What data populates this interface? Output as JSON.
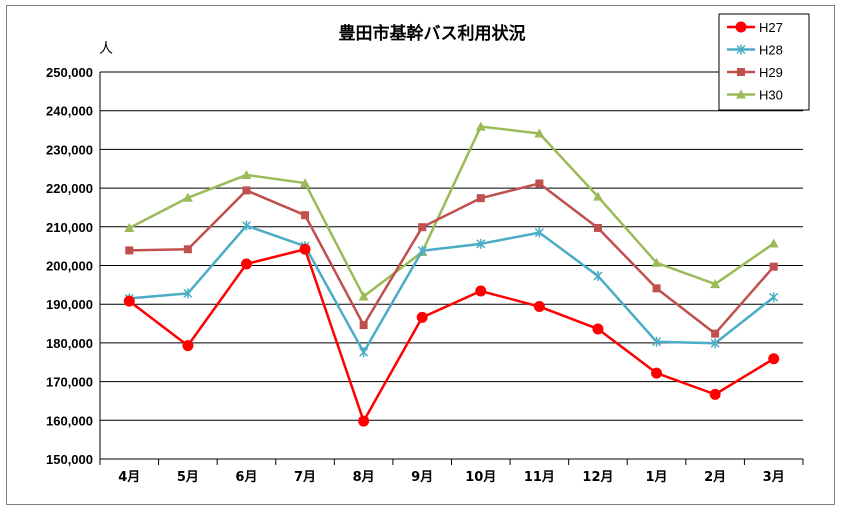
{
  "chart_data": {
    "type": "line",
    "title": "豊田市基幹バス利用状況",
    "ylabel": "人",
    "xlabel": "",
    "categories": [
      "4月",
      "5月",
      "6月",
      "7月",
      "8月",
      "9月",
      "10月",
      "11月",
      "12月",
      "1月",
      "2月",
      "3月"
    ],
    "ylim": [
      150000,
      250000
    ],
    "ytick_step": 10000,
    "yticks": [
      "150,000",
      "160,000",
      "170,000",
      "180,000",
      "190,000",
      "200,000",
      "210,000",
      "220,000",
      "230,000",
      "240,000",
      "250,000"
    ],
    "grid": true,
    "legend_position": "top-right",
    "series": [
      {
        "name": "H27",
        "color": "#ff0000",
        "marker": "circle",
        "values": [
          190800,
          179300,
          200400,
          204200,
          159800,
          186600,
          193400,
          189400,
          183600,
          172200,
          166700,
          175900
        ]
      },
      {
        "name": "H28",
        "color": "#4bacc6",
        "marker": "star",
        "values": [
          191500,
          192800,
          210300,
          205000,
          177600,
          203800,
          205600,
          208500,
          197300,
          180300,
          179900,
          191800
        ]
      },
      {
        "name": "H29",
        "color": "#c0504d",
        "marker": "square",
        "values": [
          203900,
          204200,
          219400,
          213000,
          184600,
          209900,
          217400,
          221200,
          209700,
          194100,
          182400,
          199700
        ]
      },
      {
        "name": "H30",
        "color": "#9bbb59",
        "marker": "triangle",
        "values": [
          209700,
          217500,
          223400,
          221300,
          192000,
          203500,
          235900,
          234100,
          217800,
          200700,
          195200,
          205700
        ]
      }
    ]
  }
}
